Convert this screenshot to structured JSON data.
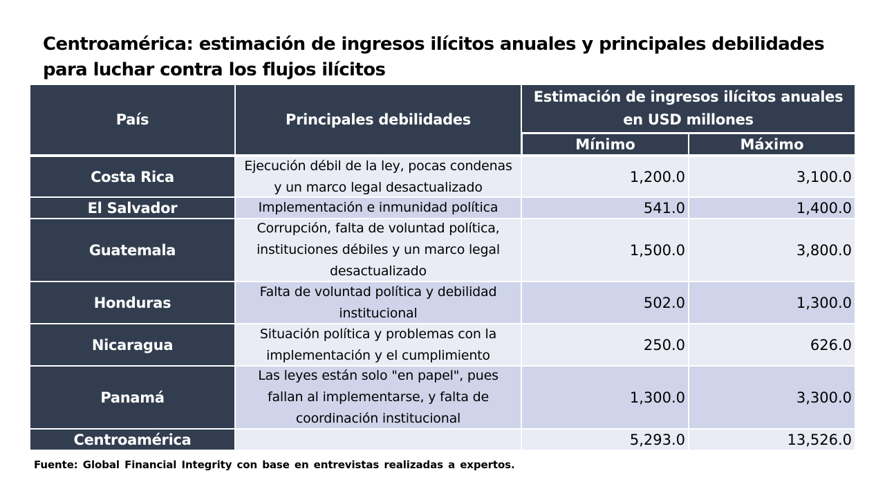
{
  "title": "Centroamérica: estimación de ingresos ilícitos anuales y principales debilidades para luchar contra los flujos ilícitos",
  "table": {
    "header": {
      "country": "País",
      "weaknesses": "Principales debilidades",
      "estimate": "Estimación de ingresos ilícitos anuales en USD millones",
      "min": "Mínimo",
      "max": "Máximo"
    },
    "rows": [
      {
        "country": "Costa Rica",
        "weakness": "Ejecución débil de la ley, pocas condenas y un marco legal desactualizado",
        "min": "1,200.0",
        "max": "3,100.0"
      },
      {
        "country": "El Salvador",
        "weakness": "Implementación e inmunidad política",
        "min": "541.0",
        "max": "1,400.0"
      },
      {
        "country": "Guatemala",
        "weakness": "Corrupción, falta de voluntad política, instituciones débiles y un marco legal desactualizado",
        "min": "1,500.0",
        "max": "3,800.0"
      },
      {
        "country": "Honduras",
        "weakness": "Falta de voluntad política y debilidad institucional",
        "min": "502.0",
        "max": "1,300.0"
      },
      {
        "country": "Nicaragua",
        "weakness": "Situación política y problemas con la implementación y el cumplimiento",
        "min": "250.0",
        "max": "626.0"
      },
      {
        "country": "Panamá",
        "weakness": "Las leyes están solo \"en papel\", pues fallan al implementarse, y falta de coordinación institucional",
        "min": "1,300.0",
        "max": "3,300.0"
      },
      {
        "country": "Centroamérica",
        "weakness": "",
        "min": "5,293.0",
        "max": "13,526.0"
      }
    ]
  },
  "source": "Fuente: Global Financial Integrity con base en entrevistas realizadas a expertos."
}
